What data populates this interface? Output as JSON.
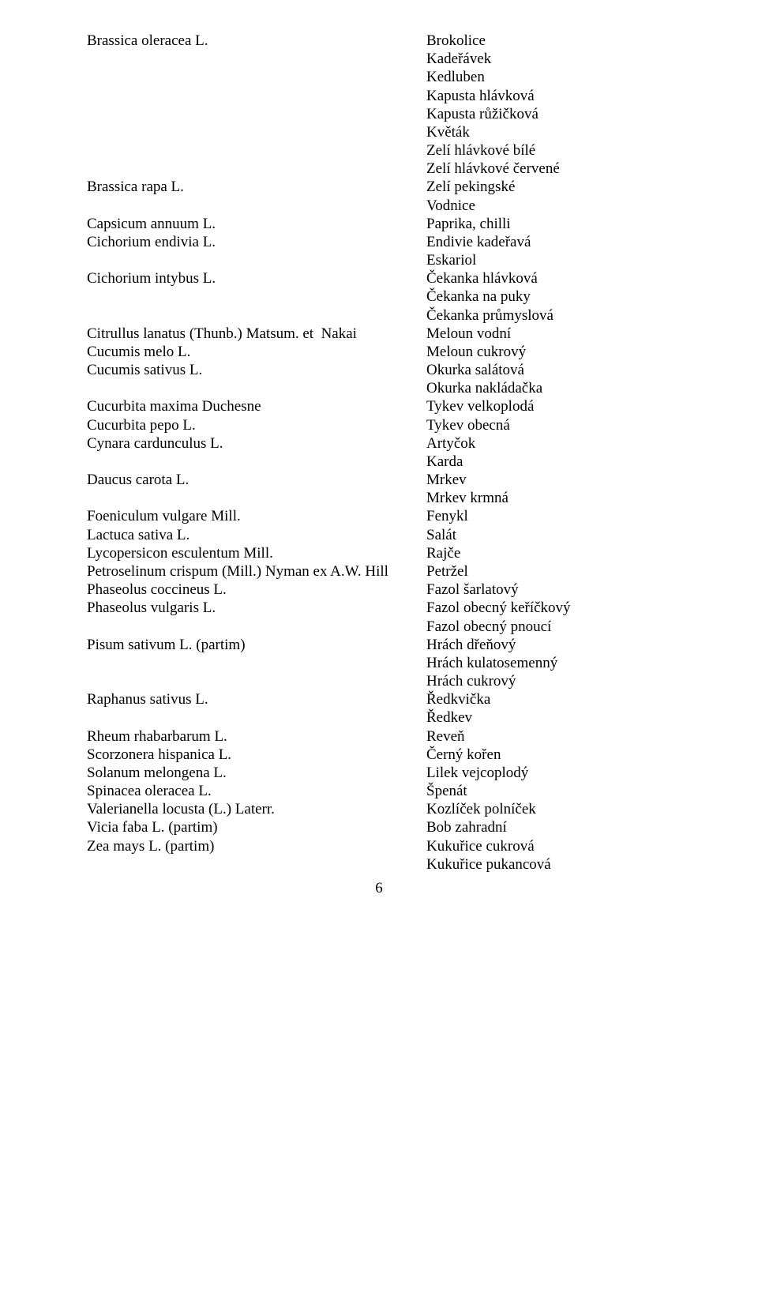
{
  "page_number": "6",
  "entries": [
    {
      "latin": "Brassica oleracea L.",
      "names": [
        "Brokolice",
        "Kadeřávek",
        "Kedluben",
        "Kapusta hlávková",
        "Kapusta růžičková",
        "Květák",
        "Zelí hlávkové bílé",
        "Zelí hlávkové červené"
      ]
    },
    {
      "latin": "Brassica rapa L.",
      "names": [
        "Zelí pekingské",
        "Vodnice"
      ]
    },
    {
      "latin": "Capsicum annuum L.",
      "names": [
        "Paprika, chilli"
      ]
    },
    {
      "latin": "Cichorium endivia L.",
      "names": [
        "Endivie kadeřavá",
        "Eskariol"
      ]
    },
    {
      "latin": "Cichorium intybus L.",
      "names": [
        "Čekanka hlávková",
        "Čekanka na puky",
        "Čekanka průmyslová"
      ]
    },
    {
      "latin": "Citrullus lanatus (Thunb.) Matsum. et  Nakai",
      "names": [
        "Meloun vodní"
      ]
    },
    {
      "latin": "Cucumis melo L.",
      "names": [
        "Meloun cukrový"
      ]
    },
    {
      "latin": "Cucumis sativus L.",
      "names": [
        "Okurka salátová",
        "Okurka nakládačka"
      ]
    },
    {
      "latin": "Cucurbita maxima Duchesne",
      "names": [
        "Tykev velkoplodá"
      ]
    },
    {
      "latin": "Cucurbita pepo L.",
      "names": [
        "Tykev obecná"
      ]
    },
    {
      "latin": "Cynara cardunculus L.",
      "names": [
        "Artyčok",
        "Karda"
      ]
    },
    {
      "latin": "Daucus carota L.",
      "names": [
        "Mrkev",
        "Mrkev krmná"
      ]
    },
    {
      "latin": "Foeniculum vulgare Mill.",
      "names": [
        "Fenykl"
      ]
    },
    {
      "latin": "Lactuca sativa L.",
      "names": [
        "Salát"
      ]
    },
    {
      "latin": "Lycopersicon esculentum Mill.",
      "names": [
        "Rajče"
      ]
    },
    {
      "latin": "Petroselinum crispum (Mill.) Nyman ex A.W. Hill",
      "names": [
        "Petržel"
      ]
    },
    {
      "latin": "Phaseolus coccineus L.",
      "names": [
        "Fazol šarlatový"
      ]
    },
    {
      "latin": "Phaseolus vulgaris L.",
      "names": [
        "Fazol obecný keříčkový",
        "Fazol obecný pnoucí"
      ]
    },
    {
      "latin": "Pisum sativum L. (partim)",
      "names": [
        "Hrách dřeňový",
        "Hrách kulatosemenný",
        "Hrách cukrový"
      ]
    },
    {
      "latin": "Raphanus sativus L.",
      "names": [
        "Ředkvička",
        "Ředkev"
      ]
    },
    {
      "latin": "Rheum rhabarbarum L.",
      "names": [
        "Reveň"
      ]
    },
    {
      "latin": "Scorzonera hispanica L.",
      "names": [
        "Černý kořen"
      ]
    },
    {
      "latin": "Solanum melongena L.",
      "names": [
        "Lilek vejcoplodý"
      ]
    },
    {
      "latin": "Spinacea oleracea L.",
      "names": [
        "Špenát"
      ]
    },
    {
      "latin": "Valerianella locusta (L.) Laterr.",
      "names": [
        "Kozlíček polníček"
      ]
    },
    {
      "latin": "Vicia faba L. (partim)",
      "names": [
        "Bob zahradní"
      ]
    },
    {
      "latin": "Zea mays L. (partim)",
      "names": [
        "Kukuřice cukrová",
        "Kukuřice pukancová"
      ]
    }
  ],
  "colors": {
    "background": "#ffffff",
    "text": "#000000"
  },
  "fontsize": 19,
  "font_family": "Times New Roman"
}
